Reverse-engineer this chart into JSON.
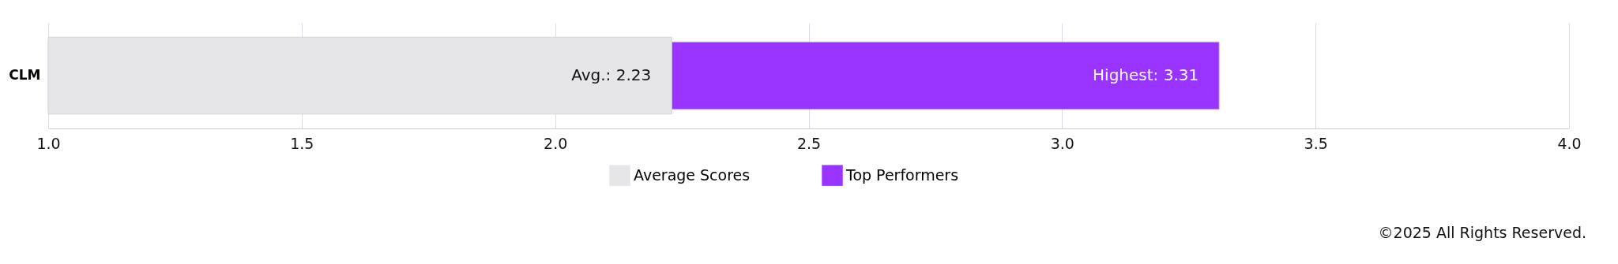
{
  "chart_data": {
    "type": "bar",
    "orientation": "horizontal",
    "categories": [
      "CLM"
    ],
    "series": [
      {
        "name": "Average Scores",
        "color": "#e6e6e9",
        "values": [
          2.23
        ],
        "value_labels": [
          "Avg.: 2.23"
        ]
      },
      {
        "name": "Top Performers",
        "color": "#9933ff",
        "values": [
          3.31
        ],
        "value_labels": [
          "Highest: 3.31"
        ]
      }
    ],
    "xlim": [
      1.0,
      4.0
    ],
    "xticks": [
      {
        "value": 1,
        "label": "1.0"
      },
      {
        "value": 1.5,
        "label": "1.5"
      },
      {
        "value": 2,
        "label": "2.0"
      },
      {
        "value": 2.5,
        "label": "2.5"
      },
      {
        "value": 3,
        "label": "3.0"
      },
      {
        "value": 3.5,
        "label": "3.5"
      },
      {
        "value": 4,
        "label": "4.0"
      }
    ],
    "grid": "x",
    "legend": "bottom",
    "annotations": [
      "©2025 All Rights Reserved."
    ]
  }
}
